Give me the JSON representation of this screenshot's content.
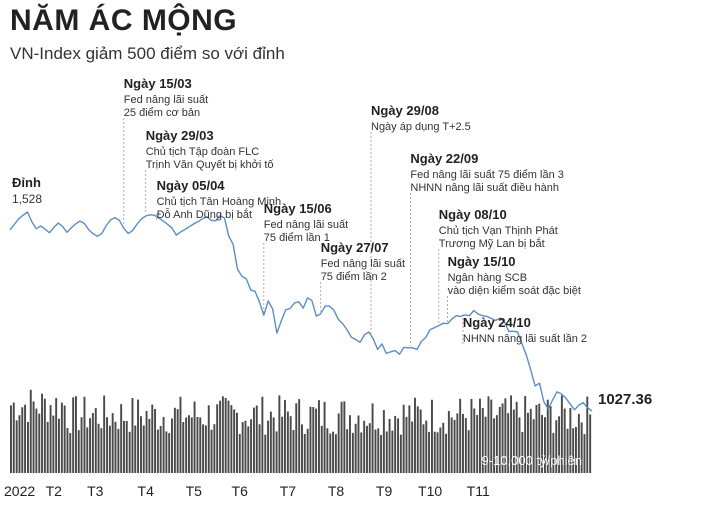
{
  "header": {
    "title": "NĂM ÁC MỘNG",
    "subtitle": "VN-Index giảm 500 điểm so với đỉnh"
  },
  "chart_data": {
    "type": "line",
    "series": [
      {
        "values": [
          [
            0,
            1483
          ],
          [
            2,
            1497
          ],
          [
            4,
            1511
          ],
          [
            6,
            1520
          ],
          [
            8,
            1528
          ],
          [
            10,
            1503
          ],
          [
            12,
            1486
          ],
          [
            14,
            1493
          ],
          [
            16,
            1485
          ],
          [
            18,
            1476
          ],
          [
            20,
            1489
          ],
          [
            22,
            1500
          ],
          [
            24,
            1492
          ],
          [
            26,
            1477
          ],
          [
            28,
            1488
          ],
          [
            30,
            1498
          ],
          [
            32,
            1505
          ],
          [
            34,
            1499
          ],
          [
            36,
            1483
          ],
          [
            38,
            1473
          ],
          [
            40,
            1467
          ],
          [
            42,
            1474
          ],
          [
            44,
            1494
          ],
          [
            46,
            1508
          ],
          [
            48,
            1514
          ],
          [
            50,
            1507
          ],
          [
            52,
            1487
          ],
          [
            54,
            1474
          ],
          [
            56,
            1481
          ],
          [
            58,
            1497
          ],
          [
            60,
            1510
          ],
          [
            62,
            1518
          ],
          [
            64,
            1521
          ],
          [
            66,
            1520
          ],
          [
            68,
            1513
          ],
          [
            70,
            1505
          ],
          [
            72,
            1497
          ],
          [
            74,
            1488
          ],
          [
            76,
            1470
          ],
          [
            78,
            1478
          ],
          [
            80,
            1484
          ],
          [
            82,
            1491
          ],
          [
            84,
            1498
          ],
          [
            86,
            1504
          ],
          [
            88,
            1511
          ],
          [
            90,
            1516
          ],
          [
            92,
            1507
          ],
          [
            94,
            1506
          ],
          [
            96,
            1519
          ],
          [
            98,
            1513
          ],
          [
            100,
            1467
          ],
          [
            102,
            1446
          ],
          [
            104,
            1384
          ],
          [
            106,
            1366
          ],
          [
            108,
            1360
          ],
          [
            110,
            1332
          ],
          [
            112,
            1328
          ],
          [
            114,
            1302
          ],
          [
            116,
            1268
          ],
          [
            118,
            1304
          ],
          [
            120,
            1284
          ],
          [
            122,
            1223
          ],
          [
            124,
            1254
          ],
          [
            126,
            1282
          ],
          [
            128,
            1285
          ],
          [
            130,
            1299
          ],
          [
            132,
            1302
          ],
          [
            134,
            1286
          ],
          [
            136,
            1312
          ],
          [
            138,
            1305
          ],
          [
            140,
            1266
          ],
          [
            142,
            1272
          ],
          [
            144,
            1291
          ],
          [
            146,
            1291
          ],
          [
            148,
            1281
          ],
          [
            150,
            1258
          ],
          [
            152,
            1247
          ],
          [
            154,
            1232
          ],
          [
            156,
            1213
          ],
          [
            158,
            1207
          ],
          [
            160,
            1200
          ],
          [
            162,
            1219
          ],
          [
            164,
            1226
          ],
          [
            166,
            1209
          ],
          [
            168,
            1182
          ],
          [
            170,
            1196
          ],
          [
            172,
            1172
          ],
          [
            174,
            1176
          ],
          [
            176,
            1179
          ],
          [
            178,
            1170
          ],
          [
            180,
            1187
          ],
          [
            182,
            1186
          ],
          [
            184,
            1186
          ],
          [
            186,
            1182
          ],
          [
            188,
            1202
          ],
          [
            190,
            1212
          ],
          [
            192,
            1232
          ],
          [
            194,
            1237
          ],
          [
            196,
            1242
          ],
          [
            198,
            1248
          ],
          [
            200,
            1247
          ],
          [
            202,
            1259
          ],
          [
            204,
            1267
          ],
          [
            206,
            1265
          ],
          [
            208,
            1269
          ],
          [
            210,
            1267
          ],
          [
            212,
            1280
          ],
          [
            214,
            1271
          ],
          [
            216,
            1267
          ],
          [
            218,
            1265
          ],
          [
            220,
            1260
          ],
          [
            222,
            1255
          ],
          [
            224,
            1261
          ],
          [
            226,
            1251
          ],
          [
            228,
            1227
          ],
          [
            230,
            1228
          ],
          [
            232,
            1226
          ],
          [
            234,
            1196
          ],
          [
            236,
            1167
          ],
          [
            238,
            1131
          ],
          [
            240,
            1090
          ],
          [
            242,
            1097
          ],
          [
            244,
            1050
          ],
          [
            246,
            1032
          ],
          [
            248,
            1055
          ],
          [
            250,
            1075
          ],
          [
            252,
            1070
          ],
          [
            254,
            1060
          ],
          [
            256,
            1045
          ],
          [
            258,
            1030
          ],
          [
            260,
            1042
          ],
          [
            262,
            1048
          ],
          [
            264,
            1035
          ],
          [
            266,
            1027
          ]
        ]
      }
    ],
    "volume_label": "9-10,000 tỷ/phiên",
    "x_ticks": [
      {
        "label": "2022",
        "x": 0
      },
      {
        "label": "T2",
        "x": 20
      },
      {
        "label": "T3",
        "x": 39
      },
      {
        "label": "T4",
        "x": 62
      },
      {
        "label": "T5",
        "x": 84
      },
      {
        "label": "T6",
        "x": 105
      },
      {
        "label": "T7",
        "x": 127
      },
      {
        "label": "T8",
        "x": 149
      },
      {
        "label": "T9",
        "x": 171
      },
      {
        "label": "T10",
        "x": 192
      },
      {
        "label": "T11",
        "x": 214
      }
    ],
    "peak": {
      "title": "Đỉnh",
      "value": "1,528",
      "x": 8
    },
    "last_value": "1027.36",
    "annotations": [
      {
        "date": "Ngày 15/03",
        "lines": [
          "Fed nâng lãi suất",
          "25 điểm cơ bản"
        ],
        "x": 52
      },
      {
        "date": "Ngày 29/03",
        "lines": [
          "Chủ tịch Tập đoàn FLC",
          "Trịnh Văn Quyết bị khởi tố"
        ],
        "x": 62
      },
      {
        "date": "Ngày 05/04",
        "lines": [
          "Chủ tịch Tân Hoàng Minh",
          "Đỗ Anh Dũng bị bắt"
        ],
        "x": 67
      },
      {
        "date": "Ngày 15/06",
        "lines": [
          "Fed nâng lãi suất",
          "75 điểm lần 1"
        ],
        "x": 116
      },
      {
        "date": "Ngày 27/07",
        "lines": [
          "Fed nâng lãi suất",
          "75 điểm lần 2"
        ],
        "x": 142
      },
      {
        "date": "Ngày 29/08",
        "lines": [
          "Ngày áp dụng T+2.5"
        ],
        "x": 165
      },
      {
        "date": "Ngày 22/09",
        "lines": [
          "Fed nâng lãi suất 75 điểm lần 3",
          "NHNN nâng lãi suất điều hành"
        ],
        "x": 183
      },
      {
        "date": "Ngày 08/10",
        "lines": [
          "Chủ tịch Vạn Thịnh Phát",
          "Trương Mỹ Lan bị bắt"
        ],
        "x": 196
      },
      {
        "date": "Ngày 15/10",
        "lines": [
          "Ngân hàng SCB",
          "vào diện kiểm soát đặc biệt"
        ],
        "x": 200
      },
      {
        "date": "Ngày 24/10",
        "lines": [
          "NHNN nâng lãi suất lần 2"
        ],
        "x": 207
      }
    ],
    "colors": {
      "line": "#5b8fc4",
      "volume": "#4a4a4a",
      "guide": "#9a9a9a"
    }
  }
}
